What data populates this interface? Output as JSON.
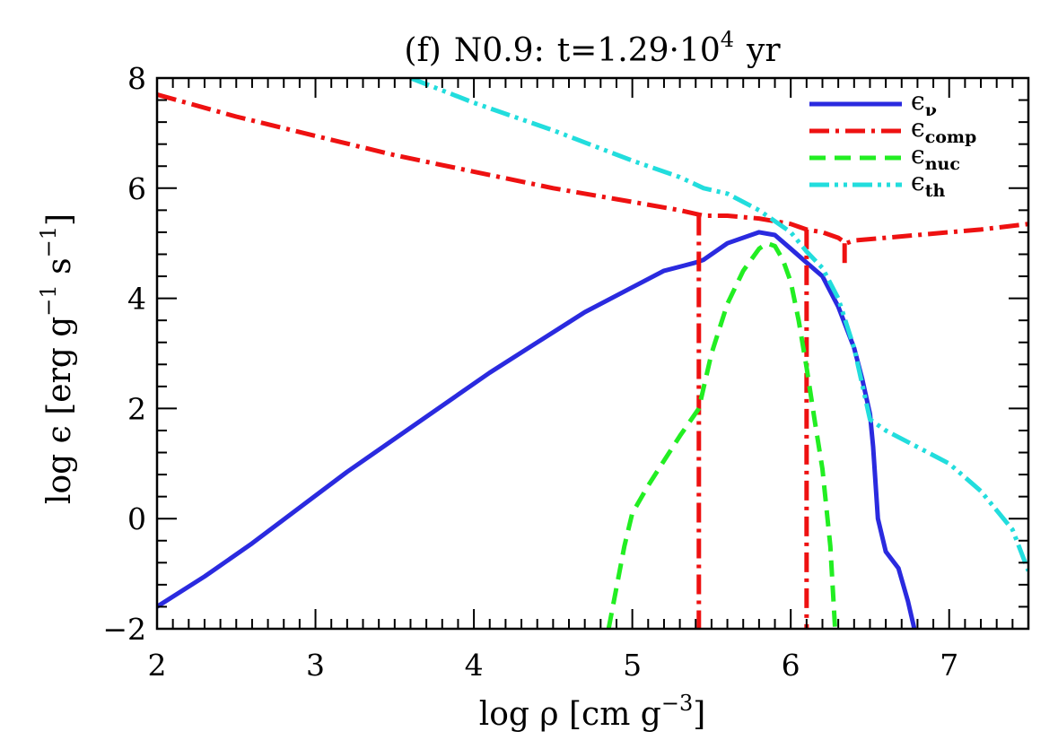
{
  "chart_data": {
    "type": "line",
    "title_prefix": "(f)",
    "title_model": "N0.9:",
    "title_time": "t=1.29·10",
    "title_time_exp": "4",
    "title_time_unit": "yr",
    "xlabel_main": "log ρ [cm g",
    "xlabel_exp": "−3",
    "xlabel_end": "]",
    "ylabel_main": "log ϵ [erg g",
    "ylabel_exp1": "−1",
    "ylabel_mid": " s",
    "ylabel_exp2": "−1",
    "ylabel_end": "]",
    "xlim": [
      2,
      7.5
    ],
    "ylim": [
      -2,
      8
    ],
    "xticks": [
      2,
      3,
      4,
      5,
      6,
      7
    ],
    "xtick_labels": [
      "2",
      "3",
      "4",
      "5",
      "6",
      "7"
    ],
    "yticks": [
      -2,
      0,
      2,
      4,
      6,
      8
    ],
    "ytick_labels": [
      "−2",
      "0",
      "2",
      "4",
      "6",
      "8"
    ],
    "legend_position": "top-right",
    "series": [
      {
        "name": "ϵ",
        "sub": "ν",
        "color": "#2a2adf",
        "style": "solid",
        "points": [
          [
            2.0,
            -1.6
          ],
          [
            2.3,
            -1.05
          ],
          [
            2.6,
            -0.45
          ],
          [
            2.9,
            0.2
          ],
          [
            3.2,
            0.85
          ],
          [
            3.5,
            1.45
          ],
          [
            3.8,
            2.05
          ],
          [
            4.1,
            2.65
          ],
          [
            4.4,
            3.2
          ],
          [
            4.7,
            3.75
          ],
          [
            5.0,
            4.2
          ],
          [
            5.2,
            4.5
          ],
          [
            5.4,
            4.65
          ],
          [
            5.45,
            4.7
          ],
          [
            5.6,
            5.0
          ],
          [
            5.8,
            5.2
          ],
          [
            5.9,
            5.15
          ],
          [
            6.0,
            4.9
          ],
          [
            6.1,
            4.65
          ],
          [
            6.2,
            4.4
          ],
          [
            6.3,
            3.85
          ],
          [
            6.4,
            3.1
          ],
          [
            6.45,
            2.55
          ],
          [
            6.5,
            1.9
          ],
          [
            6.52,
            1.3
          ],
          [
            6.55,
            0.0
          ],
          [
            6.6,
            -0.6
          ],
          [
            6.68,
            -0.9
          ],
          [
            6.74,
            -1.5
          ],
          [
            6.78,
            -2.0
          ]
        ]
      },
      {
        "name": "ϵ",
        "sub": "comp",
        "color": "#ee1111",
        "style": "dashdot",
        "points": [
          [
            2.0,
            7.7
          ],
          [
            2.5,
            7.3
          ],
          [
            3.0,
            6.95
          ],
          [
            3.5,
            6.6
          ],
          [
            4.0,
            6.3
          ],
          [
            4.5,
            6.0
          ],
          [
            5.0,
            5.75
          ],
          [
            5.3,
            5.6
          ],
          [
            5.45,
            5.5
          ],
          [
            5.6,
            5.5
          ],
          [
            5.8,
            5.45
          ],
          [
            6.0,
            5.35
          ],
          [
            6.1,
            5.25
          ],
          [
            6.2,
            5.2
          ],
          [
            6.3,
            5.1
          ],
          [
            6.35,
            5.0
          ],
          [
            6.4,
            5.05
          ],
          [
            6.6,
            5.1
          ],
          [
            6.8,
            5.15
          ],
          [
            7.0,
            5.2
          ],
          [
            7.2,
            5.25
          ],
          [
            7.5,
            5.35
          ]
        ],
        "drops": [
          [
            5.42,
            5.5,
            -2.0
          ],
          [
            6.1,
            5.25,
            -2.0
          ],
          [
            6.34,
            5.0,
            4.6
          ]
        ]
      },
      {
        "name": "ϵ",
        "sub": "nuc",
        "color": "#22ee22",
        "style": "dashed",
        "points": [
          [
            4.85,
            -2.0
          ],
          [
            4.95,
            -0.5
          ],
          [
            5.0,
            0.1
          ],
          [
            5.1,
            0.6
          ],
          [
            5.2,
            1.05
          ],
          [
            5.3,
            1.5
          ],
          [
            5.42,
            2.0
          ],
          [
            5.5,
            3.0
          ],
          [
            5.6,
            3.9
          ],
          [
            5.7,
            4.5
          ],
          [
            5.8,
            4.9
          ],
          [
            5.85,
            5.0
          ],
          [
            5.9,
            4.95
          ],
          [
            5.95,
            4.7
          ],
          [
            6.0,
            4.3
          ],
          [
            6.05,
            3.6
          ],
          [
            6.1,
            2.75
          ],
          [
            6.15,
            1.8
          ],
          [
            6.2,
            0.9
          ],
          [
            6.25,
            -0.5
          ],
          [
            6.28,
            -2.0
          ]
        ]
      },
      {
        "name": "ϵ",
        "sub": "th",
        "color": "#22dddd",
        "style": "dashdotdot",
        "points": [
          [
            3.6,
            8.0
          ],
          [
            4.0,
            7.55
          ],
          [
            4.5,
            7.05
          ],
          [
            5.0,
            6.5
          ],
          [
            5.3,
            6.2
          ],
          [
            5.45,
            6.0
          ],
          [
            5.6,
            5.9
          ],
          [
            5.8,
            5.6
          ],
          [
            6.0,
            5.2
          ],
          [
            6.1,
            4.85
          ],
          [
            6.2,
            4.55
          ],
          [
            6.3,
            4.0
          ],
          [
            6.4,
            3.1
          ],
          [
            6.5,
            1.8
          ],
          [
            6.6,
            1.6
          ],
          [
            6.8,
            1.3
          ],
          [
            7.0,
            1.0
          ],
          [
            7.2,
            0.5
          ],
          [
            7.4,
            -0.2
          ],
          [
            7.5,
            -0.95
          ]
        ]
      }
    ]
  }
}
